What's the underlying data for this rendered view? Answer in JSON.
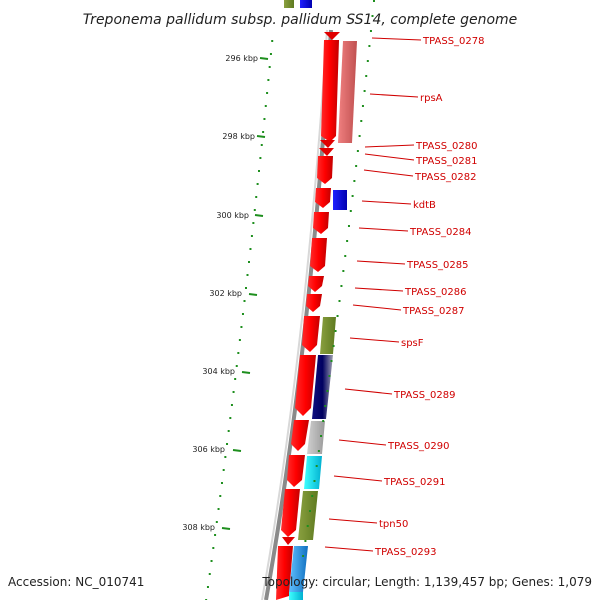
{
  "header": {
    "title": "Treponema pallidum subsp. pallidum SS14, complete genome"
  },
  "footer": {
    "accession": "Accession: NC_010741",
    "summary": "Topology: circular; Length: 1,139,457 bp; Genes: 1,079"
  },
  "ticks": [
    "296 kbp",
    "298 kbp",
    "300 kbp",
    "302 kbp",
    "304 kbp",
    "306 kbp",
    "308 kbp"
  ],
  "genes": [
    "TPASS_0278",
    "rpsA",
    "TPASS_0280",
    "TPASS_0281",
    "TPASS_0282",
    "kdtB",
    "TPASS_0284",
    "TPASS_0285",
    "TPASS_0286",
    "TPASS_0287",
    "spsF",
    "TPASS_0289",
    "TPASS_0290",
    "TPASS_0291",
    "tpn50",
    "TPASS_0293"
  ],
  "colors": {
    "cds": "#ff0000",
    "label": "#d00000",
    "dots": "#1e8f1e",
    "backbone": "#888888"
  }
}
